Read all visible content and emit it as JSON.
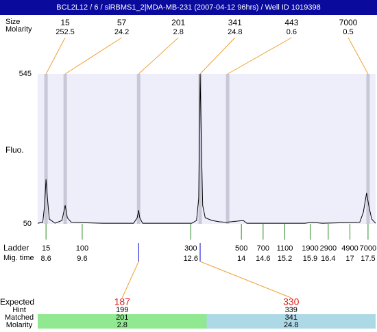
{
  "header": {
    "title": "BCL2L12 / 6 / siRBMS1_2|MDA-MB-231 (2007-04-12 96hrs) / Well ID 1019398"
  },
  "chart_data": {
    "type": "line",
    "ylabel": "Fluo.",
    "color": "#000000",
    "xlim": [
      8.37,
      17.71
    ],
    "ylim": [
      50,
      545
    ],
    "yticks": [
      50,
      545
    ],
    "x": [
      8.37,
      8.51,
      8.56,
      8.6,
      8.64,
      8.69,
      8.85,
      9.04,
      9.13,
      9.19,
      9.3,
      10.17,
      11.02,
      11.12,
      11.16,
      11.19,
      11.27,
      12.63,
      12.76,
      12.82,
      12.86,
      12.89,
      12.93,
      13.0,
      13.19,
      13.38,
      13.57,
      14.05,
      14.15,
      15.76,
      15.95,
      16.23,
      17.27,
      17.37,
      17.46,
      17.52,
      17.6,
      17.71
    ],
    "values": [
      52,
      55,
      111,
      197,
      134,
      66,
      52,
      61,
      111,
      70,
      55,
      52,
      52,
      70,
      95,
      70,
      52,
      52,
      61,
      134,
      545,
      337,
      111,
      70,
      61,
      57,
      55,
      61,
      52,
      52,
      55,
      52,
      55,
      88,
      152,
      111,
      66,
      52
    ],
    "peak_labels": [
      "Size",
      "Molarity"
    ],
    "peaks": [
      {
        "size": 15,
        "molarity": 252.5,
        "time": 8.6
      },
      {
        "size": 57,
        "molarity": 24.2,
        "time": 9.13
      },
      {
        "size": 201,
        "molarity": 2.8,
        "time": 11.16
      },
      {
        "size": 341,
        "molarity": 24.8,
        "time": 12.86
      },
      {
        "size": 443,
        "molarity": 0.6,
        "time": 13.62
      },
      {
        "size": 7000,
        "molarity": 0.5,
        "time": 17.5
      }
    ],
    "ladder_labels": [
      "Ladder",
      "Mig. time"
    ],
    "ladder": [
      {
        "size": 15,
        "time": 8.6
      },
      {
        "size": 100,
        "time": 9.6
      },
      {
        "size": 300,
        "time": 12.6
      },
      {
        "size": 500,
        "time": 14
      },
      {
        "size": 700,
        "time": 14.6
      },
      {
        "size": 1100,
        "time": 15.2
      },
      {
        "size": 1900,
        "time": 15.9
      },
      {
        "size": 2900,
        "time": 16.4
      },
      {
        "size": 4900,
        "time": 17
      },
      {
        "size": 7000,
        "time": 17.5
      }
    ],
    "expected_labels": [
      "Expected",
      "Hint",
      "Matched",
      "Molarity"
    ],
    "expected": [
      {
        "expected": 187,
        "hint": 199,
        "matched": 201,
        "molarity": 2.8,
        "color": "#90e890"
      },
      {
        "expected": 330,
        "hint": 339,
        "matched": 341,
        "molarity": 24.8,
        "color": "#add8e6"
      }
    ]
  }
}
